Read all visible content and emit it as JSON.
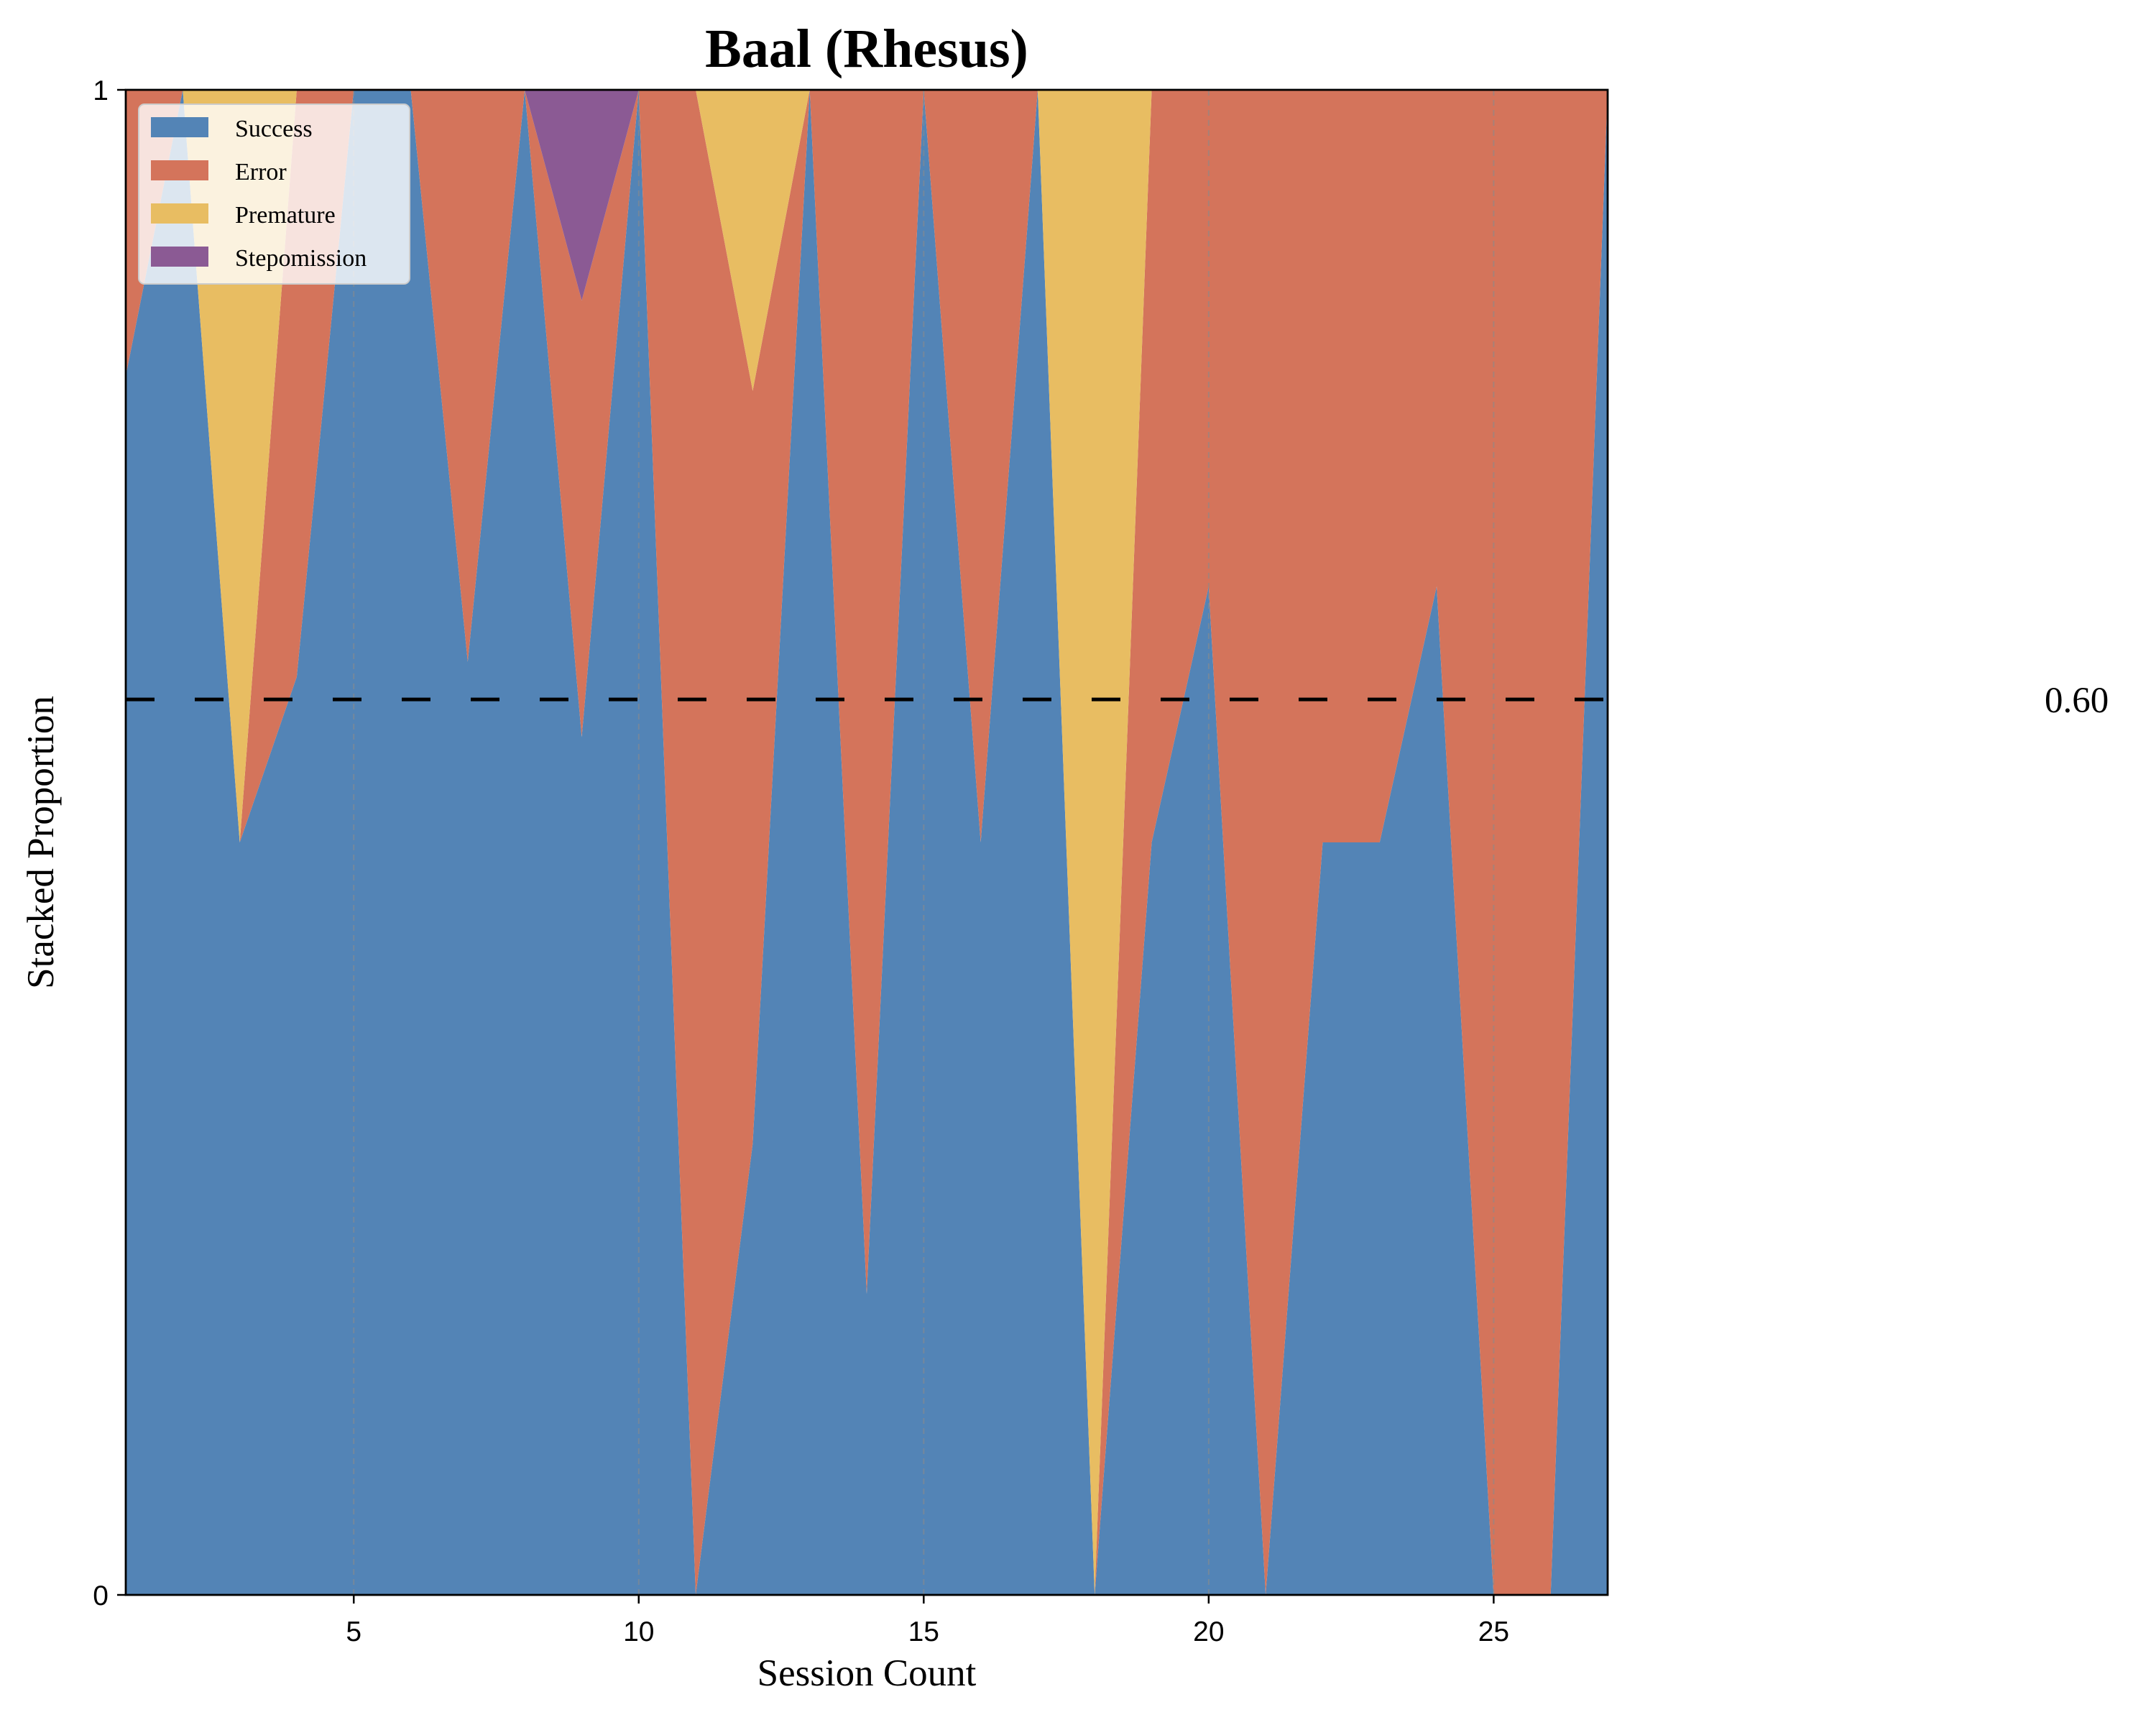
{
  "chart_data": {
    "type": "area",
    "stacked": true,
    "title": "Baal (Rhesus)",
    "xlabel": "Session Count",
    "ylabel": "Stacked Proportion",
    "xlim": [
      1,
      27
    ],
    "ylim": [
      0,
      1
    ],
    "x_ticks": [
      5,
      10,
      15,
      20,
      25
    ],
    "y_ticks": [
      0,
      1
    ],
    "x_grid": true,
    "y_grid": false,
    "legend_position": "upper-left",
    "x": [
      1,
      2,
      3,
      4,
      5,
      6,
      7,
      8,
      9,
      10,
      11,
      12,
      13,
      14,
      15,
      16,
      17,
      18,
      19,
      20,
      21,
      22,
      23,
      24,
      25,
      26,
      27
    ],
    "series": [
      {
        "name": "Success",
        "color": "#5384b6",
        "values": [
          0.81,
          1.0,
          0.5,
          0.61,
          1.0,
          1.0,
          0.62,
          1.0,
          0.57,
          1.0,
          0.0,
          0.3,
          1.0,
          0.2,
          1.0,
          0.5,
          1.0,
          0.0,
          0.5,
          0.67,
          0.0,
          0.5,
          0.5,
          0.67,
          0.0,
          0.0,
          1.0
        ]
      },
      {
        "name": "Error",
        "color": "#d4745b",
        "values": [
          0.19,
          0.0,
          0.0,
          0.39,
          0.0,
          0.0,
          0.38,
          0.0,
          0.29,
          0.0,
          1.0,
          0.5,
          0.0,
          0.8,
          0.0,
          0.5,
          0.0,
          0.0,
          0.5,
          0.33,
          1.0,
          0.5,
          0.5,
          0.33,
          1.0,
          1.0,
          0.0
        ]
      },
      {
        "name": "Premature",
        "color": "#e8bd62",
        "values": [
          0.0,
          0.0,
          0.5,
          0.0,
          0.0,
          0.0,
          0.0,
          0.0,
          0.0,
          0.0,
          0.0,
          0.2,
          0.0,
          0.0,
          0.0,
          0.0,
          0.0,
          1.0,
          0.0,
          0.0,
          0.0,
          0.0,
          0.0,
          0.0,
          0.0,
          0.0,
          0.0
        ]
      },
      {
        "name": "Stepomission",
        "color": "#8b5a94",
        "values": [
          0.0,
          0.0,
          0.0,
          0.0,
          0.0,
          0.0,
          0.0,
          0.0,
          0.14,
          0.0,
          0.0,
          0.0,
          0.0,
          0.0,
          0.0,
          0.0,
          0.0,
          0.0,
          0.0,
          0.0,
          0.0,
          0.0,
          0.0,
          0.0,
          0.0,
          0.0,
          0.0
        ]
      }
    ],
    "reference_line": {
      "y": 0.595,
      "label": "0.60",
      "style": "dashed",
      "color": "#000000"
    }
  }
}
